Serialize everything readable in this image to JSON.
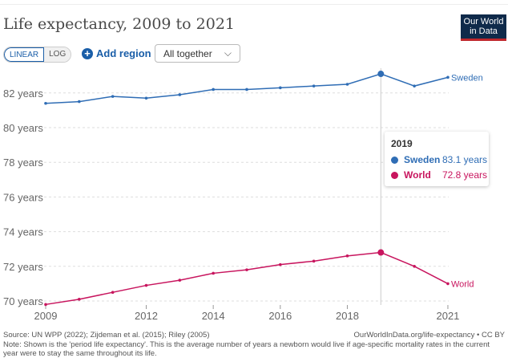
{
  "header": {
    "title": "Life expectancy, 2009 to 2021",
    "logo": "Our World in Data"
  },
  "controls": {
    "linear": "LINEAR",
    "log": "LOG",
    "add_region": "Add region",
    "add_icon": "plus-circle-icon",
    "select_value": "All together",
    "chevron": "⌵"
  },
  "tooltip": {
    "year": "2019",
    "rows": [
      {
        "name": "Sweden",
        "value": "83.1 years"
      },
      {
        "name": "World",
        "value": "72.8 years"
      }
    ]
  },
  "footer": {
    "source": "Source: UN WPP (2022); Zijdeman et al. (2015); Riley (2005)",
    "link": "OurWorldInData.org/life-expectancy • CC BY",
    "note": "Note: Shown is the 'period life expectancy'. This is the average number of years a newborn would live if age-specific mortality rates in the current year were to stay the same throughout its life."
  },
  "chart_data": {
    "type": "line",
    "title": "Life expectancy, 2009 to 2021",
    "x": [
      2009,
      2010,
      2011,
      2012,
      2013,
      2014,
      2015,
      2016,
      2017,
      2018,
      2019,
      2020,
      2021
    ],
    "xticks": [
      "2009",
      "2012",
      "2014",
      "2016",
      "2018",
      "2021"
    ],
    "xtick_values": [
      2009,
      2012,
      2014,
      2016,
      2018,
      2021
    ],
    "yticks": [
      "70 years",
      "72 years",
      "74 years",
      "76 years",
      "78 years",
      "80 years",
      "82 years"
    ],
    "ytick_values": [
      70,
      72,
      74,
      76,
      78,
      80,
      82
    ],
    "ylim": [
      69.8,
      83.3
    ],
    "highlight_x": 2019,
    "series": [
      {
        "name": "Sweden",
        "color": "#2f6db5",
        "values": [
          81.4,
          81.5,
          81.8,
          81.7,
          81.9,
          82.2,
          82.2,
          82.3,
          82.4,
          82.5,
          83.1,
          82.4,
          82.9
        ]
      },
      {
        "name": "World",
        "color": "#c8155e",
        "values": [
          69.8,
          70.1,
          70.5,
          70.9,
          71.2,
          71.6,
          71.8,
          72.1,
          72.3,
          72.6,
          72.8,
          72.0,
          71.0
        ]
      }
    ]
  }
}
